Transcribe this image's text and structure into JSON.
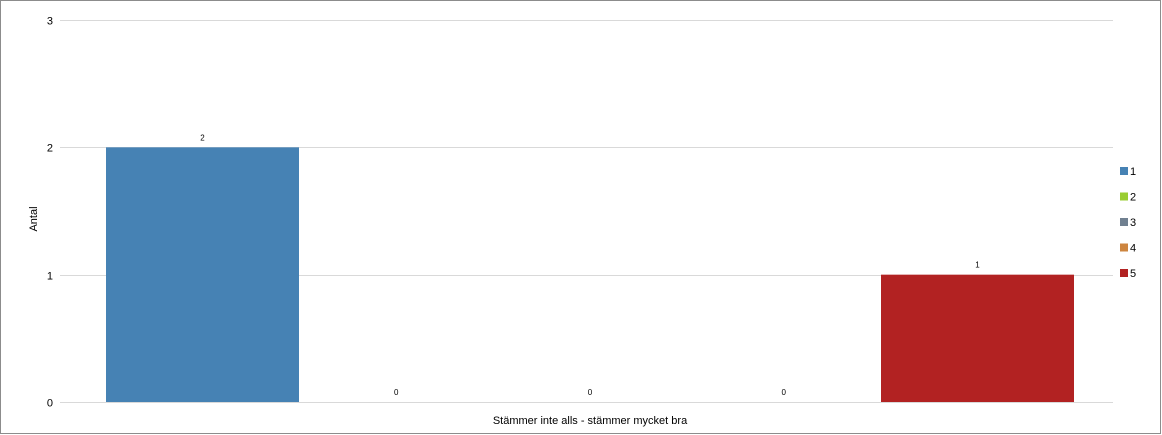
{
  "chart_data": {
    "type": "bar",
    "categories": [
      "Stämmer inte alls - stämmer mycket bra"
    ],
    "series": [
      {
        "name": "1",
        "values": [
          2
        ],
        "color": "#4682b4"
      },
      {
        "name": "2",
        "values": [
          0
        ],
        "color": "#9acd32"
      },
      {
        "name": "3",
        "values": [
          0
        ],
        "color": "#708090"
      },
      {
        "name": "4",
        "values": [
          0
        ],
        "color": "#cd853f"
      },
      {
        "name": "5",
        "values": [
          1
        ],
        "color": "#b22222"
      }
    ],
    "ylim": [
      0,
      3
    ],
    "yticks": [
      "0",
      "1",
      "2",
      "3"
    ],
    "xlabel": "Stämmer inte alls - stämmer mycket bra",
    "ylabel": "Antal",
    "grid": true,
    "legend_position": "right",
    "data_labels": [
      "2",
      "0",
      "0",
      "0",
      "1"
    ]
  }
}
